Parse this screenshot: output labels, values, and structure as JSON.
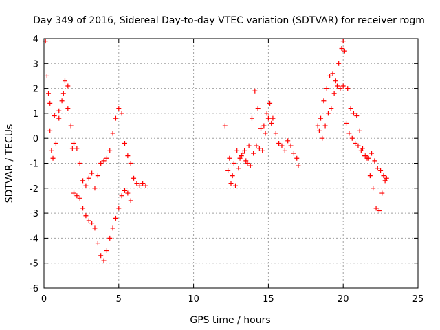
{
  "chart_data": {
    "type": "scatter",
    "title": "Day 349 of 2016, Sidereal Day-to-day VTEC variation (SDTVAR) for receiver rogm",
    "xlabel": "GPS time / hours",
    "ylabel": "SDTVAR / TECUs",
    "xlim": [
      0,
      25
    ],
    "ylim": [
      -6,
      4
    ],
    "xticks": [
      "0",
      "5",
      "10",
      "15",
      "20",
      "25"
    ],
    "yticks": [
      "4",
      "3",
      "2",
      "1",
      "0",
      "-1",
      "-2",
      "-3",
      "-4",
      "-5",
      "-6"
    ],
    "grid": true,
    "marker": "+",
    "series_color": "#ff0000",
    "series": [
      {
        "name": "seg-a-upper",
        "x": [
          0.1,
          0.2,
          0.3,
          0.4,
          0.5,
          0.6,
          0.8,
          1.0,
          1.2,
          1.4,
          1.6,
          1.8,
          2.0,
          2.2,
          2.4,
          2.6,
          2.8,
          3.0,
          3.2,
          3.4,
          3.6,
          3.8,
          4.0,
          4.2,
          4.4,
          4.6,
          4.8,
          5.0,
          5.2,
          5.4,
          5.6,
          5.8,
          6.0,
          6.2,
          6.4,
          6.6,
          6.8
        ],
        "y": [
          3.9,
          2.5,
          1.8,
          0.3,
          -0.5,
          -0.8,
          -0.2,
          0.8,
          1.5,
          2.3,
          2.1,
          0.5,
          -0.2,
          -0.4,
          -1.0,
          -1.7,
          -1.9,
          -1.6,
          -1.4,
          -2.0,
          -1.5,
          -1.0,
          -0.9,
          -0.8,
          -0.5,
          0.2,
          0.8,
          1.2,
          1.0,
          -0.2,
          -0.7,
          -1.0,
          -1.6,
          -1.8,
          -1.9,
          -1.8,
          -1.9
        ]
      },
      {
        "name": "seg-a-lower",
        "x": [
          0.4,
          0.7,
          1.0,
          1.3,
          1.6,
          1.9,
          2.0,
          2.2,
          2.4,
          2.6,
          2.8,
          3.0,
          3.2,
          3.4,
          3.6,
          3.8,
          4.0,
          4.2,
          4.4,
          4.6,
          4.8,
          5.0,
          5.2,
          5.4,
          5.6,
          5.8
        ],
        "y": [
          1.4,
          0.9,
          1.1,
          1.8,
          1.2,
          -0.4,
          -2.2,
          -2.3,
          -2.4,
          -2.8,
          -3.1,
          -3.3,
          -3.4,
          -3.6,
          -4.2,
          -4.7,
          -4.9,
          -4.5,
          -4.0,
          -3.6,
          -3.2,
          -2.8,
          -2.3,
          -2.1,
          -2.2,
          -2.5
        ]
      },
      {
        "name": "seg-b",
        "x": [
          12.1,
          12.3,
          12.5,
          12.7,
          12.9,
          13.1,
          13.3,
          13.5,
          13.7,
          13.9,
          14.1,
          14.3,
          14.5,
          14.7,
          14.9,
          15.1,
          15.3,
          15.5,
          15.7,
          15.9,
          16.1,
          16.3,
          16.5,
          16.7,
          16.9,
          17.0
        ],
        "y": [
          0.5,
          -1.3,
          -1.8,
          -1.0,
          -0.5,
          -0.8,
          -0.6,
          -0.9,
          -0.3,
          0.8,
          1.9,
          1.2,
          0.4,
          0.5,
          1.0,
          1.4,
          0.8,
          0.2,
          -0.2,
          -0.3,
          -0.5,
          -0.1,
          -0.3,
          -0.6,
          -0.8,
          -1.1
        ]
      },
      {
        "name": "seg-b-lower",
        "x": [
          12.4,
          12.6,
          12.8,
          13.0,
          13.2,
          13.4,
          13.6,
          13.8,
          14.0,
          14.2,
          14.4,
          14.6,
          14.8,
          15.0,
          15.2
        ],
        "y": [
          -0.8,
          -1.5,
          -1.9,
          -1.2,
          -0.7,
          -0.5,
          -1.0,
          -1.1,
          -0.6,
          -0.3,
          -0.4,
          -0.5,
          0.2,
          0.8,
          0.6
        ]
      },
      {
        "name": "seg-c-upper",
        "x": [
          18.3,
          18.5,
          18.7,
          18.9,
          19.1,
          19.3,
          19.5,
          19.7,
          19.9,
          20.0,
          20.1,
          20.3,
          20.5,
          20.7,
          20.9,
          21.1,
          21.3,
          21.5,
          21.7,
          21.9,
          22.1,
          22.3,
          22.5,
          22.7,
          22.9
        ],
        "y": [
          0.5,
          0.8,
          1.5,
          2.0,
          2.5,
          2.6,
          2.3,
          3.0,
          3.6,
          3.9,
          3.5,
          2.0,
          1.2,
          1.0,
          0.9,
          0.3,
          -0.4,
          -0.7,
          -0.8,
          -0.6,
          -0.9,
          -1.2,
          -1.3,
          -1.5,
          -1.6
        ]
      },
      {
        "name": "seg-c-lower",
        "x": [
          18.4,
          18.6,
          18.8,
          19.0,
          19.2,
          19.4,
          19.6,
          19.8,
          20.0,
          20.2,
          20.4,
          20.6,
          20.8,
          21.0,
          21.2,
          21.4,
          21.6,
          21.8,
          22.0,
          22.2,
          22.4,
          22.6,
          22.8
        ],
        "y": [
          0.3,
          0.0,
          0.5,
          1.0,
          1.2,
          1.8,
          2.1,
          2.0,
          2.1,
          0.6,
          0.2,
          0.0,
          -0.2,
          -0.3,
          -0.5,
          -0.7,
          -0.8,
          -1.5,
          -2.0,
          -2.8,
          -2.9,
          -2.2,
          -1.7
        ]
      }
    ]
  }
}
